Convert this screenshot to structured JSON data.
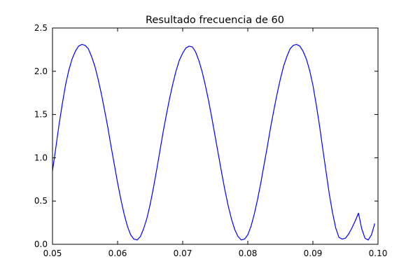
{
  "chart_data": {
    "type": "line",
    "title": "Resultado frecuencia de 60",
    "xlabel": "",
    "ylabel": "",
    "xlim": [
      0.05,
      0.1
    ],
    "ylim": [
      0.0,
      2.5
    ],
    "xticks": [
      0.05,
      0.06,
      0.07,
      0.08,
      0.09,
      0.1
    ],
    "xtick_labels": [
      "0.05",
      "0.06",
      "0.07",
      "0.08",
      "0.09",
      "0.10"
    ],
    "yticks": [
      0.0,
      0.5,
      1.0,
      1.5,
      2.0,
      2.5
    ],
    "ytick_labels": [
      "0.0",
      "0.5",
      "1.0",
      "1.5",
      "2.0",
      "2.5"
    ],
    "grid": false,
    "legend": "none",
    "series": [
      {
        "color": "#0000ff",
        "x": [
          0.05,
          0.0505,
          0.051,
          0.0515,
          0.052,
          0.0525,
          0.053,
          0.0535,
          0.054,
          0.0545,
          0.055,
          0.0555,
          0.056,
          0.0565,
          0.057,
          0.0575,
          0.058,
          0.0585,
          0.059,
          0.0595,
          0.06,
          0.0605,
          0.061,
          0.0615,
          0.062,
          0.0625,
          0.063,
          0.0635,
          0.064,
          0.0645,
          0.065,
          0.0655,
          0.066,
          0.0665,
          0.067,
          0.0675,
          0.068,
          0.0685,
          0.069,
          0.0695,
          0.07,
          0.0705,
          0.071,
          0.0715,
          0.072,
          0.0725,
          0.073,
          0.0735,
          0.074,
          0.0745,
          0.075,
          0.0755,
          0.076,
          0.0765,
          0.077,
          0.0775,
          0.078,
          0.0785,
          0.079,
          0.0795,
          0.08,
          0.0805,
          0.081,
          0.0815,
          0.082,
          0.0825,
          0.083,
          0.0835,
          0.084,
          0.0845,
          0.085,
          0.0855,
          0.086,
          0.0865,
          0.087,
          0.0875,
          0.088,
          0.0885,
          0.089,
          0.0895,
          0.09,
          0.0905,
          0.091,
          0.0915,
          0.092,
          0.0925,
          0.093,
          0.0935,
          0.094,
          0.0945,
          0.095,
          0.0955,
          0.096,
          0.0965,
          0.097,
          0.0975,
          0.098,
          0.0985,
          0.099,
          0.0995
        ],
        "y": [
          0.85,
          1.11,
          1.38,
          1.62,
          1.84,
          2.01,
          2.14,
          2.23,
          2.29,
          2.31,
          2.3,
          2.26,
          2.17,
          2.06,
          1.91,
          1.74,
          1.55,
          1.35,
          1.13,
          0.92,
          0.71,
          0.52,
          0.35,
          0.21,
          0.11,
          0.06,
          0.05,
          0.09,
          0.18,
          0.3,
          0.46,
          0.65,
          0.86,
          1.08,
          1.3,
          1.5,
          1.69,
          1.86,
          2.01,
          2.13,
          2.21,
          2.27,
          2.29,
          2.28,
          2.22,
          2.12,
          1.99,
          1.83,
          1.65,
          1.45,
          1.24,
          1.03,
          0.82,
          0.62,
          0.44,
          0.29,
          0.17,
          0.09,
          0.05,
          0.06,
          0.11,
          0.21,
          0.35,
          0.52,
          0.71,
          0.92,
          1.13,
          1.35,
          1.55,
          1.74,
          1.91,
          2.06,
          2.17,
          2.26,
          2.3,
          2.31,
          2.29,
          2.23,
          2.14,
          2.01,
          1.84,
          1.62,
          1.38,
          1.11,
          0.85,
          0.59,
          0.37,
          0.19,
          0.08,
          0.06,
          0.07,
          0.12,
          0.19,
          0.27,
          0.36,
          0.18,
          0.07,
          0.05,
          0.11,
          0.24
        ]
      }
    ]
  }
}
